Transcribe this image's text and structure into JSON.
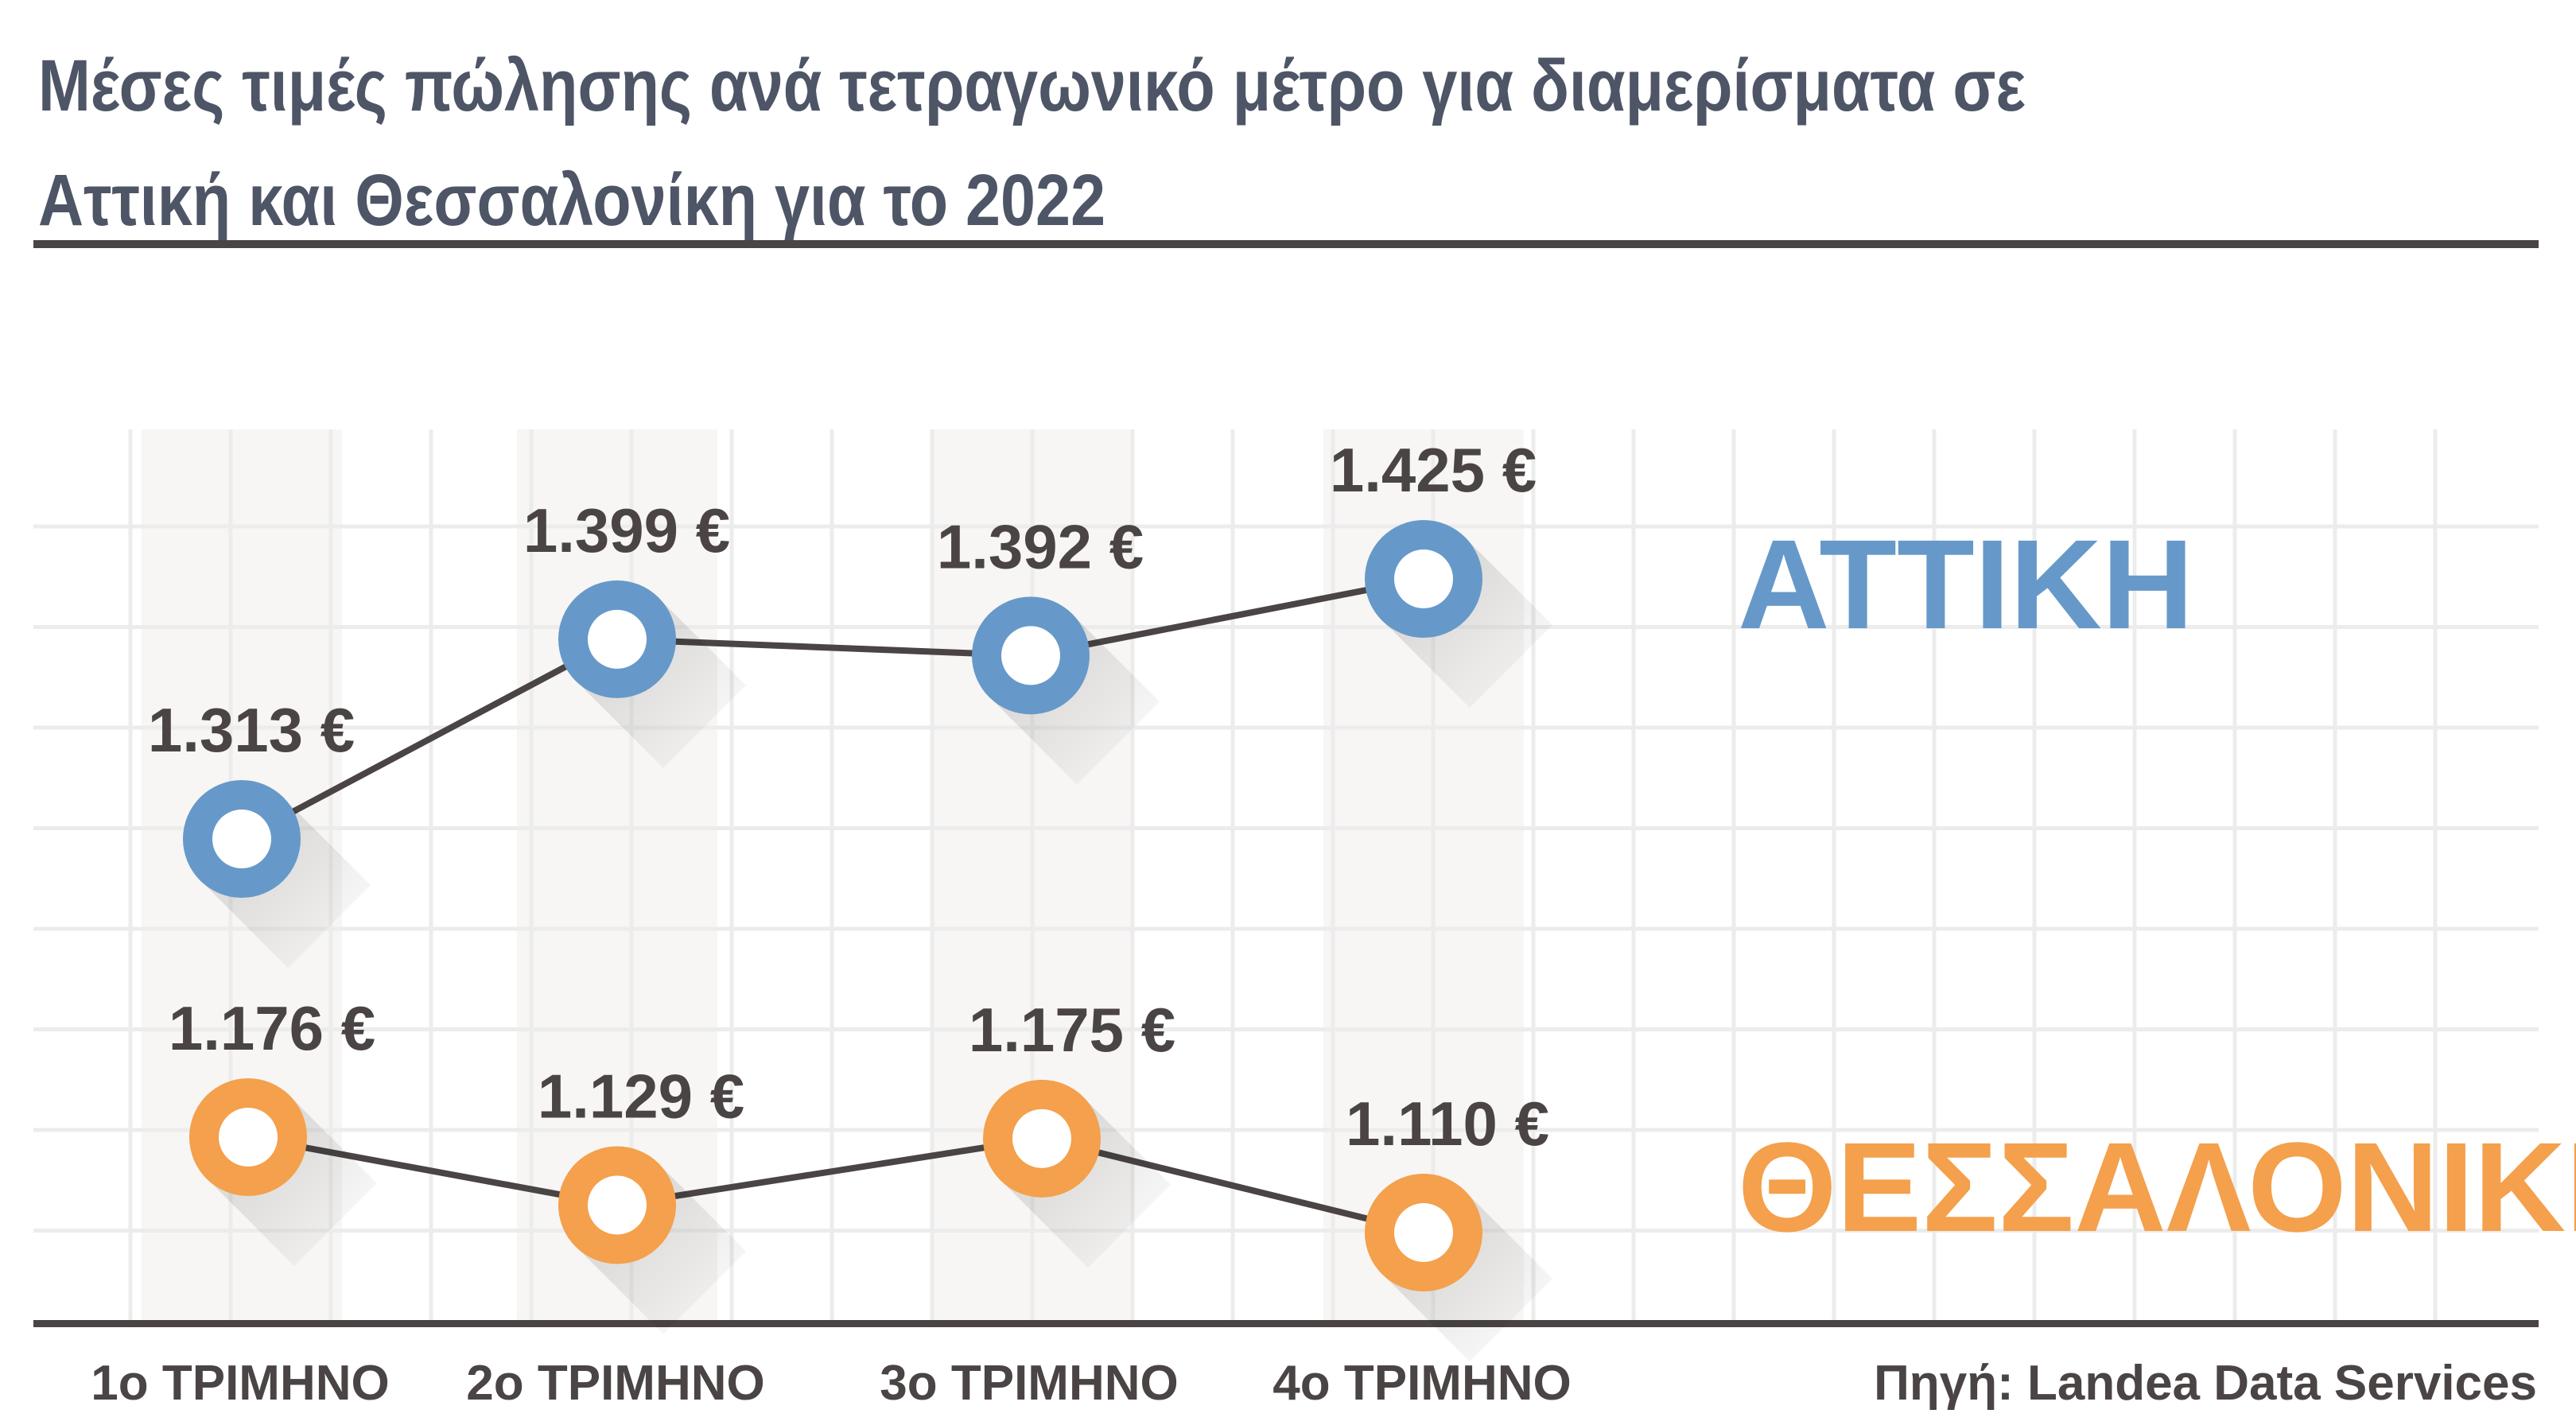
{
  "title": "Μέσες τιμές πώλησης ανά τετραγωνικό μέτρο για διαμερίσματα σε Αττική και Θεσσαλονίκη για το 2022",
  "source": "Πηγή: Landea Data Services",
  "colors": {
    "attiki": "#6699c9",
    "thessaloniki": "#f4a04c",
    "line": "#4a4444",
    "text": "#4a4444",
    "title": "#4d5566",
    "grid": "#ececec",
    "band": "#f7f6f4"
  },
  "chart_data": {
    "type": "line",
    "categories": [
      "1ο ΤΡΙΜΗΝΟ",
      "2ο ΤΡΙΜΗΝΟ",
      "3ο ΤΡΙΜΗΝΟ",
      "4ο ΤΡΙΜΗΝΟ"
    ],
    "series": [
      {
        "name": "ΑΤΤΙΚΗ",
        "color": "#6699c9",
        "values": [
          1313,
          1399,
          1392,
          1425
        ],
        "labels": [
          "1.313 €",
          "1.399 €",
          "1.392 €",
          "1.425 €"
        ]
      },
      {
        "name": "ΘΕΣΣΑΛΟΝΙΚΗ",
        "color": "#f4a04c",
        "values": [
          1176,
          1129,
          1175,
          1110
        ],
        "labels": [
          "1.176 €",
          "1.129 €",
          "1.175 €",
          "1.110 €"
        ]
      }
    ],
    "unit": "€ / τ.μ.",
    "grid": true,
    "legend": "right"
  }
}
